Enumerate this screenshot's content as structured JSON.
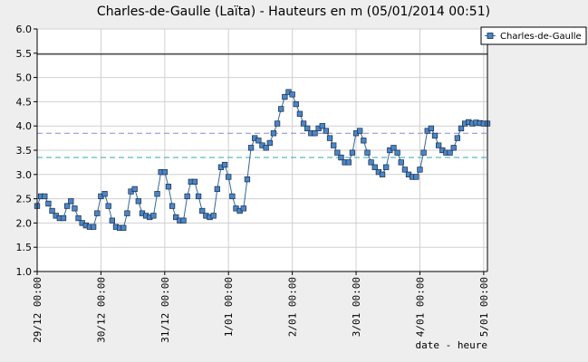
{
  "chart_data": {
    "type": "line",
    "title": "Charles-de-Gaulle (Laïta) - Hauteurs en m (05/01/2014 00:51)",
    "xlabel": "date - heure",
    "ylabel": "",
    "ylim": [
      1.0,
      6.0
    ],
    "yticks": [
      "1.0",
      "1.5",
      "2.0",
      "2.5",
      "3.0",
      "3.5",
      "4.0",
      "4.5",
      "5.0",
      "5.5",
      "6.0"
    ],
    "xlim_hours": [
      0,
      120
    ],
    "xticks": [
      {
        "label": "29/12 00:00",
        "hour": 0
      },
      {
        "label": "30/12 00:00",
        "hour": 17
      },
      {
        "label": "31/12 00:00",
        "hour": 34
      },
      {
        "label": "1/01 00:00",
        "hour": 51
      },
      {
        "label": "2/01 00:00",
        "hour": 68
      },
      {
        "label": "3/01 00:00",
        "hour": 85
      },
      {
        "label": "4/01 00:00",
        "hour": 102
      },
      {
        "label": "5/01 00:00",
        "hour": 119
      }
    ],
    "grid": true,
    "legend": {
      "position": "top-right"
    },
    "reference_lines": [
      {
        "value": 5.48,
        "color": "#000000",
        "style": "solid"
      },
      {
        "value": 3.85,
        "color": "#8888dd",
        "style": "dashed"
      },
      {
        "value": 3.35,
        "color": "#33aaaa",
        "style": "dashed"
      }
    ],
    "series": [
      {
        "name": "Charles-de-Gaulle",
        "color": "#336699",
        "marker_fill": "#4a86c8",
        "x": [
          0,
          1,
          2,
          3,
          4,
          5,
          6,
          7,
          8,
          9,
          10,
          11,
          12,
          13,
          14,
          15,
          16,
          17,
          18,
          19,
          20,
          21,
          22,
          23,
          24,
          25,
          26,
          27,
          28,
          29,
          30,
          31,
          32,
          33,
          34,
          35,
          36,
          37,
          38,
          39,
          40,
          41,
          42,
          43,
          44,
          45,
          46,
          47,
          48,
          49,
          50,
          51,
          52,
          53,
          54,
          55,
          56,
          57,
          58,
          59,
          60,
          61,
          62,
          63,
          64,
          65,
          66,
          67,
          68,
          69,
          70,
          71,
          72,
          73,
          74,
          75,
          76,
          77,
          78,
          79,
          80,
          81,
          82,
          83,
          84,
          85,
          86,
          87,
          88,
          89,
          90,
          91,
          92,
          93,
          94,
          95,
          96,
          97,
          98,
          99,
          100,
          101,
          102,
          103,
          104,
          105,
          106,
          107,
          108,
          109,
          110,
          111,
          112,
          113,
          114,
          115,
          116,
          117,
          118,
          119,
          120
        ],
        "y": [
          2.35,
          2.55,
          2.55,
          2.4,
          2.25,
          2.15,
          2.1,
          2.1,
          2.35,
          2.45,
          2.3,
          2.1,
          2.0,
          1.95,
          1.92,
          1.92,
          2.2,
          2.55,
          2.6,
          2.35,
          2.05,
          1.92,
          1.9,
          1.9,
          2.2,
          2.65,
          2.7,
          2.45,
          2.2,
          2.15,
          2.12,
          2.15,
          2.6,
          3.05,
          3.05,
          2.75,
          2.35,
          2.12,
          2.05,
          2.05,
          2.55,
          2.85,
          2.85,
          2.55,
          2.25,
          2.15,
          2.12,
          2.15,
          2.7,
          3.15,
          3.2,
          2.95,
          2.55,
          2.3,
          2.25,
          2.3,
          2.9,
          3.55,
          3.75,
          3.7,
          3.6,
          3.55,
          3.65,
          3.85,
          4.05,
          4.35,
          4.6,
          4.7,
          4.65,
          4.45,
          4.25,
          4.05,
          3.95,
          3.85,
          3.85,
          3.95,
          4.0,
          3.9,
          3.75,
          3.6,
          3.45,
          3.35,
          3.25,
          3.25,
          3.45,
          3.85,
          3.9,
          3.7,
          3.45,
          3.25,
          3.15,
          3.05,
          3.0,
          3.15,
          3.5,
          3.55,
          3.45,
          3.25,
          3.1,
          3.0,
          2.95,
          2.95,
          3.1,
          3.45,
          3.9,
          3.95,
          3.8,
          3.6,
          3.5,
          3.45,
          3.45,
          3.55,
          3.75,
          3.95,
          4.05,
          4.08,
          4.05,
          4.07,
          4.06,
          4.05,
          4.05
        ]
      }
    ]
  }
}
